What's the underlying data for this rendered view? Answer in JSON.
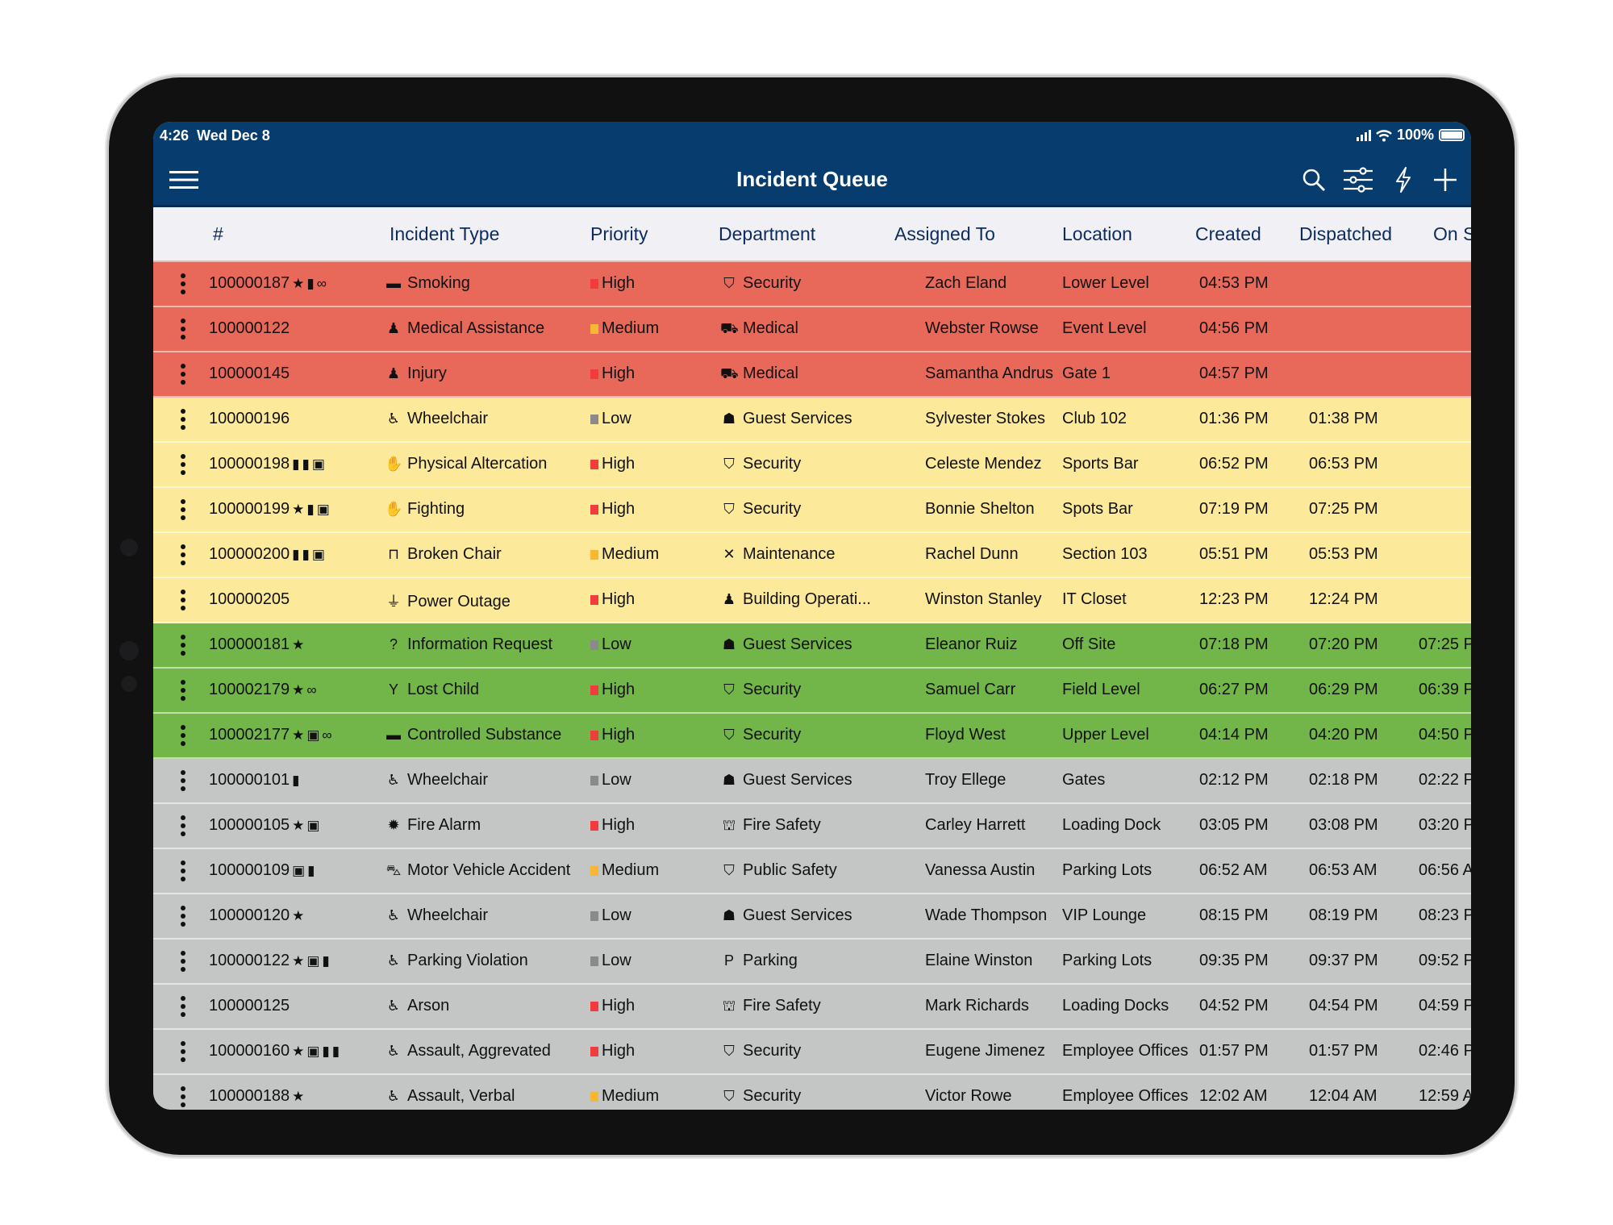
{
  "status_bar": {
    "time": "4:26",
    "date": "Wed Dec 8",
    "battery": "100%",
    "battery_level": 100,
    "signal_bars": 4
  },
  "nav": {
    "title": "Incident Queue",
    "left_icon": "hamburger-menu-icon",
    "right_icons": [
      "search-icon",
      "filter-sliders-icon",
      "lightning-icon",
      "plus-icon"
    ]
  },
  "columns": [
    "#",
    "Incident Type",
    "Priority",
    "Department",
    "Assigned To",
    "Location",
    "Created",
    "Dispatched",
    "On S"
  ],
  "colors": {
    "nav_bg": "#073d6e",
    "header_bg": "#f0f0f5",
    "row_red": "#e8685a",
    "row_yellow": "#fce99a",
    "row_green": "#72b548",
    "row_gray": "#c4c5c5",
    "priority_high": "#f03c3c",
    "priority_medium": "#f8b732",
    "priority_low": "#8a8a8a"
  },
  "rows": [
    {
      "status": "red",
      "id": "100000187",
      "flags": [
        "star",
        "document",
        "link"
      ],
      "type_icon": "smoking-icon",
      "type": "Smoking",
      "priority": "High",
      "dept_icon": "shield-icon",
      "department": "Security",
      "assigned": "Zach Eland",
      "location": "Lower Level",
      "created": "04:53 PM",
      "dispatched": "",
      "on_scene": ""
    },
    {
      "status": "red",
      "id": "100000122",
      "flags": [],
      "type_icon": "person-medical-icon",
      "type": "Medical Assistance",
      "priority": "Medium",
      "dept_icon": "ambulance-icon",
      "department": "Medical",
      "assigned": "Webster Rowse",
      "location": "Event Level",
      "created": "04:56 PM",
      "dispatched": "",
      "on_scene": ""
    },
    {
      "status": "red",
      "id": "100000145",
      "flags": [],
      "type_icon": "person-medical-icon",
      "type": "Injury",
      "priority": "High",
      "dept_icon": "ambulance-icon",
      "department": "Medical",
      "assigned": "Samantha Andrus",
      "location": "Gate 1",
      "created": "04:57 PM",
      "dispatched": "",
      "on_scene": ""
    },
    {
      "status": "yellow",
      "id": "100000196",
      "flags": [],
      "type_icon": "wheelchair-icon",
      "type": "Wheelchair",
      "priority": "Low",
      "dept_icon": "users-icon",
      "department": "Guest Services",
      "assigned": "Sylvester Stokes",
      "location": "Club 102",
      "created": "01:36 PM",
      "dispatched": "01:38 PM",
      "on_scene": ""
    },
    {
      "status": "yellow",
      "id": "100000198",
      "flags": [
        "document",
        "document-upload",
        "lock"
      ],
      "type_icon": "hand-icon",
      "type": "Physical Altercation",
      "priority": "High",
      "dept_icon": "shield-icon",
      "department": "Security",
      "assigned": "Celeste Mendez",
      "location": "Sports Bar",
      "created": "06:52 PM",
      "dispatched": "06:53 PM",
      "on_scene": ""
    },
    {
      "status": "yellow",
      "id": "100000199",
      "flags": [
        "star",
        "document",
        "lock"
      ],
      "type_icon": "hand-icon",
      "type": "Fighting",
      "priority": "High",
      "dept_icon": "shield-icon",
      "department": "Security",
      "assigned": "Bonnie Shelton",
      "location": "Spots Bar",
      "created": "07:19 PM",
      "dispatched": "07:25 PM",
      "on_scene": ""
    },
    {
      "status": "yellow",
      "id": "100000200",
      "flags": [
        "document",
        "document-upload",
        "lock"
      ],
      "type_icon": "chair-icon",
      "type": "Broken Chair",
      "priority": "Medium",
      "dept_icon": "tools-icon",
      "department": "Maintenance",
      "assigned": "Rachel Dunn",
      "location": "Section 103",
      "created": "05:51 PM",
      "dispatched": "05:53 PM",
      "on_scene": ""
    },
    {
      "status": "yellow",
      "id": "100000205",
      "flags": [],
      "type_icon": "plug-icon",
      "type": "Power Outage",
      "priority": "High",
      "dept_icon": "user-gear-icon",
      "department": "Building Operati...",
      "assigned": "Winston Stanley",
      "location": "IT Closet",
      "created": "12:23 PM",
      "dispatched": "12:24 PM",
      "on_scene": ""
    },
    {
      "status": "green",
      "id": "100000181",
      "flags": [
        "star"
      ],
      "type_icon": "question-icon",
      "type": "Information Request",
      "priority": "Low",
      "dept_icon": "users-icon",
      "department": "Guest Services",
      "assigned": "Eleanor Ruiz",
      "location": "Off Site",
      "created": "07:18 PM",
      "dispatched": "07:20 PM",
      "on_scene": "07:25 P"
    },
    {
      "status": "green",
      "id": "100002179",
      "flags": [
        "star",
        "link"
      ],
      "type_icon": "child-icon",
      "type": "Lost Child",
      "priority": "High",
      "dept_icon": "shield-icon",
      "department": "Security",
      "assigned": "Samuel Carr",
      "location": "Field Level",
      "created": "06:27 PM",
      "dispatched": "06:29 PM",
      "on_scene": "06:39 P"
    },
    {
      "status": "green",
      "id": "100002177",
      "flags": [
        "star",
        "lock",
        "link"
      ],
      "type_icon": "smoking-icon",
      "type": "Controlled Substance",
      "priority": "High",
      "dept_icon": "shield-icon",
      "department": "Security",
      "assigned": "Floyd West",
      "location": "Upper Level",
      "created": "04:14 PM",
      "dispatched": "04:20 PM",
      "on_scene": "04:50 P"
    },
    {
      "status": "gray",
      "id": "100000101",
      "flags": [
        "document"
      ],
      "type_icon": "wheelchair-icon",
      "type": "Wheelchair",
      "priority": "Low",
      "dept_icon": "users-icon",
      "department": "Guest Services",
      "assigned": "Troy Ellege",
      "location": "Gates",
      "created": "02:12 PM",
      "dispatched": "02:18 PM",
      "on_scene": "02:22 P"
    },
    {
      "status": "gray",
      "id": "100000105",
      "flags": [
        "star",
        "lock"
      ],
      "type_icon": "alarm-bell-icon",
      "type": "Fire Alarm",
      "priority": "High",
      "dept_icon": "fire-extinguisher-icon",
      "department": "Fire Safety",
      "assigned": "Carley Harrett",
      "location": "Loading Dock",
      "created": "03:05 PM",
      "dispatched": "03:08 PM",
      "on_scene": "03:20 P"
    },
    {
      "status": "gray",
      "id": "100000109",
      "flags": [
        "lock",
        "document-upload"
      ],
      "type_icon": "car-icon",
      "type": "Motor Vehicle Accident",
      "priority": "Medium",
      "dept_icon": "shield-icon",
      "department": "Public Safety",
      "assigned": "Vanessa Austin",
      "location": "Parking Lots",
      "created": "06:52 AM",
      "dispatched": "06:53 AM",
      "on_scene": "06:56 A"
    },
    {
      "status": "gray",
      "id": "100000120",
      "flags": [
        "star"
      ],
      "type_icon": "wheelchair-icon",
      "type": "Wheelchair",
      "priority": "Low",
      "dept_icon": "users-icon",
      "department": "Guest Services",
      "assigned": "Wade Thompson",
      "location": "VIP Lounge",
      "created": "08:15 PM",
      "dispatched": "08:19 PM",
      "on_scene": "08:23 P"
    },
    {
      "status": "gray",
      "id": "100000122",
      "flags": [
        "star",
        "lock",
        "document-upload"
      ],
      "type_icon": "wheelchair-icon",
      "type": "Parking Violation",
      "priority": "Low",
      "dept_icon": "parking-icon",
      "department": "Parking",
      "assigned": "Elaine Winston",
      "location": "Parking Lots",
      "created": "09:35 PM",
      "dispatched": "09:37 PM",
      "on_scene": "09:52 P"
    },
    {
      "status": "gray",
      "id": "100000125",
      "flags": [],
      "type_icon": "wheelchair-icon",
      "type": "Arson",
      "priority": "High",
      "dept_icon": "fire-extinguisher-icon",
      "department": "Fire Safety",
      "assigned": "Mark Richards",
      "location": "Loading Docks",
      "created": "04:52 PM",
      "dispatched": "04:54 PM",
      "on_scene": "04:59 P"
    },
    {
      "status": "gray",
      "id": "100000160",
      "flags": [
        "star",
        "lock",
        "document-upload",
        "document"
      ],
      "type_icon": "wheelchair-icon",
      "type": "Assault, Aggrevated",
      "priority": "High",
      "dept_icon": "shield-icon",
      "department": "Security",
      "assigned": "Eugene Jimenez",
      "location": "Employee Offices",
      "created": "01:57 PM",
      "dispatched": "01:57 PM",
      "on_scene": "02:46 P"
    },
    {
      "status": "gray",
      "id": "100000188",
      "flags": [
        "star"
      ],
      "type_icon": "wheelchair-icon",
      "type": "Assault, Verbal",
      "priority": "Medium",
      "dept_icon": "shield-icon",
      "department": "Security",
      "assigned": "Victor Rowe",
      "location": "Employee Offices",
      "created": "12:02 AM",
      "dispatched": "12:04 AM",
      "on_scene": "12:59 A"
    }
  ]
}
